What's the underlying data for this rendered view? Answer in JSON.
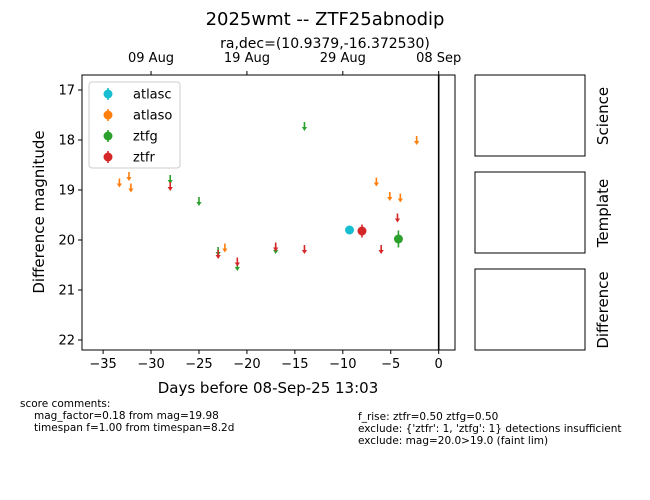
{
  "chart_data": {
    "type": "scatter",
    "title": "2025wmt -- ZTF25abnodip",
    "subtitle": "ra,dec=(10.9379,-16.372530)",
    "xlabel": "Days before 08-Sep-25 13:03",
    "ylabel": "Difference magnitude",
    "xlim": [
      -37.2,
      1.7
    ],
    "ylim": [
      22.2,
      16.7
    ],
    "y_inverted": true,
    "x_ticks": [
      -35,
      -30,
      -25,
      -20,
      -15,
      -10,
      -5,
      0
    ],
    "y_ticks": [
      17,
      18,
      19,
      20,
      21,
      22
    ],
    "top_axis": {
      "ticks": [
        {
          "x": -30.0,
          "label": "09 Aug"
        },
        {
          "x": -20.0,
          "label": "19 Aug"
        },
        {
          "x": -10.0,
          "label": "29 Aug"
        },
        {
          "x": 0.0,
          "label": "08 Sep"
        }
      ]
    },
    "vline_x": 0,
    "legend_position": "upper-left",
    "series": [
      {
        "name": "atlasc",
        "color": "#17becf",
        "detections": [
          {
            "x": -9.3,
            "y": 19.8,
            "err": 0.08
          }
        ],
        "upper_limits": []
      },
      {
        "name": "atlaso",
        "color": "#ff7f0e",
        "detections": [],
        "upper_limits": [
          {
            "x": -33.3,
            "y": 18.85
          },
          {
            "x": -32.3,
            "y": 18.72
          },
          {
            "x": -32.1,
            "y": 18.95
          },
          {
            "x": -22.3,
            "y": 20.15
          },
          {
            "x": -6.5,
            "y": 18.83
          },
          {
            "x": -5.1,
            "y": 19.12
          },
          {
            "x": -4.0,
            "y": 19.15
          },
          {
            "x": -2.3,
            "y": 18.0
          }
        ]
      },
      {
        "name": "ztfg",
        "color": "#2ca02c",
        "detections": [
          {
            "x": -4.2,
            "y": 19.98,
            "err": 0.17
          }
        ],
        "upper_limits": [
          {
            "x": -28.0,
            "y": 18.78
          },
          {
            "x": -25.0,
            "y": 19.22
          },
          {
            "x": -23.0,
            "y": 20.22
          },
          {
            "x": -21.0,
            "y": 20.52
          },
          {
            "x": -17.0,
            "y": 20.18
          },
          {
            "x": -14.0,
            "y": 17.72
          }
        ]
      },
      {
        "name": "ztfr",
        "color": "#d62728",
        "detections": [
          {
            "x": -8.0,
            "y": 19.82,
            "err": 0.13
          }
        ],
        "upper_limits": [
          {
            "x": -28.0,
            "y": 18.92
          },
          {
            "x": -23.0,
            "y": 20.28
          },
          {
            "x": -21.0,
            "y": 20.43
          },
          {
            "x": -17.0,
            "y": 20.13
          },
          {
            "x": -14.0,
            "y": 20.18
          },
          {
            "x": -6.0,
            "y": 20.18
          },
          {
            "x": -4.3,
            "y": 19.55
          }
        ]
      }
    ]
  },
  "side_panels": [
    {
      "label": "Science"
    },
    {
      "label": "Template"
    },
    {
      "label": "Difference"
    }
  ],
  "score_comments": {
    "heading": "score comments:",
    "left": [
      "mag_factor=0.18 from mag=19.98",
      "timespan f=1.00 from timespan=8.2d"
    ],
    "right": [
      "f_rise: ztfr=0.50 ztfg=0.50",
      "exclude: {'ztfr': 1, 'ztfg': 1} detections insufficient",
      "exclude: mag=20.0>19.0 (faint lim)"
    ]
  }
}
